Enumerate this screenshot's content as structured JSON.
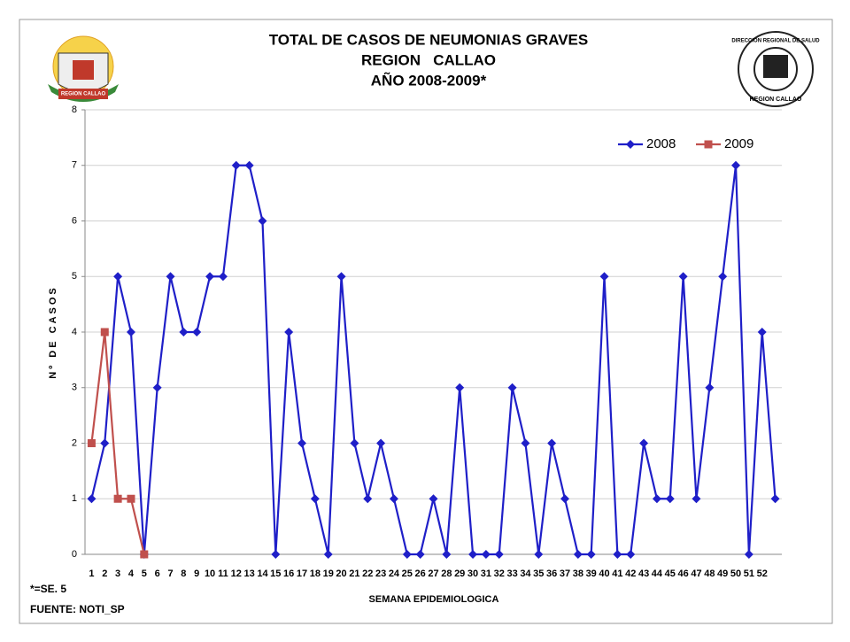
{
  "chart_data": {
    "type": "line",
    "title_lines": [
      "TOTAL DE CASOS DE NEUMONIAS GRAVES",
      "REGION   CALLAO",
      "AÑO 2008-2009*"
    ],
    "y_label": "Nº DE CASOS",
    "x_label": "SEMANA EPIDEMIOLOGICA",
    "notes": [
      "*=SE. 5",
      "FUENTE: NOTI_SP"
    ],
    "logos": [
      "REGION CALLAO",
      "DIRECCION REGIONAL DE SALUD",
      "REGION CALLAO"
    ],
    "categories": [
      "1",
      "2",
      "3",
      "4",
      "5",
      "6",
      "7",
      "8",
      "9",
      "10",
      "11",
      "12",
      "13",
      "14",
      "15",
      "16",
      "17",
      "18",
      "19",
      "20",
      "21",
      "22",
      "23",
      "24",
      "25",
      "26",
      "27",
      "28",
      "29",
      "30",
      "31",
      "32",
      "33",
      "34",
      "35",
      "36",
      "37",
      "38",
      "39",
      "40",
      "41",
      "42",
      "43",
      "44",
      "45",
      "46",
      "47",
      "48",
      "49",
      "50",
      "51",
      "52",
      null
    ],
    "series": [
      {
        "name": "2008",
        "color": "#1f1fc8",
        "marker": "diamond",
        "values": [
          1,
          2,
          5,
          4,
          0,
          3,
          5,
          4,
          4,
          5,
          5,
          7,
          7,
          6,
          0,
          4,
          2,
          1,
          0,
          5,
          2,
          1,
          2,
          1,
          0,
          0,
          1,
          0,
          3,
          0,
          0,
          0,
          3,
          2,
          0,
          2,
          1,
          0,
          0,
          5,
          0,
          0,
          2,
          1,
          1,
          5,
          1,
          3,
          5,
          7,
          0,
          4,
          1
        ]
      },
      {
        "name": "2009",
        "color": "#c0504d",
        "marker": "square",
        "values": [
          2,
          4,
          1,
          1,
          0,
          null,
          null,
          null,
          null,
          null,
          null,
          null,
          null,
          null,
          null,
          null,
          null,
          null,
          null,
          null,
          null,
          null,
          null,
          null,
          null,
          null,
          null,
          null,
          null,
          null,
          null,
          null,
          null,
          null,
          null,
          null,
          null,
          null,
          null,
          null,
          null,
          null,
          null,
          null,
          null,
          null,
          null,
          null,
          null,
          null,
          null,
          null,
          null
        ]
      }
    ],
    "ylim": [
      0,
      8
    ],
    "yticks": [
      0,
      1,
      2,
      3,
      4,
      5,
      6,
      7,
      8
    ],
    "grid": true,
    "legend": "top-right"
  }
}
